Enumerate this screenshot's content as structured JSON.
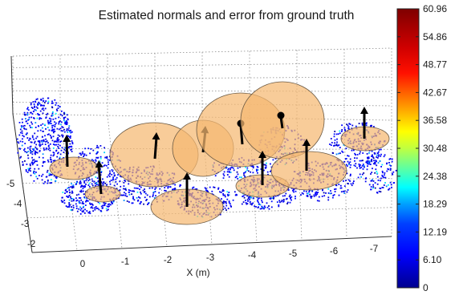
{
  "chart_data": {
    "type": "scatter",
    "title": "Estimated normals and error from ground truth",
    "xlabel": "X (m)",
    "ylabel": "",
    "x_ticks": [
      "0",
      "-1",
      "-2",
      "-3",
      "-4",
      "-5",
      "-6",
      "-7"
    ],
    "y_ticks": [
      "-5",
      "-4",
      "-3",
      "-2"
    ],
    "grid": true,
    "colorbar": {
      "ticks": [
        "0",
        "6.10",
        "12.19",
        "18.29",
        "24.38",
        "30.48",
        "36.58",
        "42.67",
        "48.77",
        "54.86",
        "60.96"
      ],
      "range": [
        0,
        60.96
      ],
      "colormap": "jet"
    },
    "normals_count": 14,
    "colors": {
      "disc_fill": "#f5b971",
      "disc_edge": "#6b5a45",
      "arrow": "#000000",
      "point_dominant": "#0a14c8",
      "grid": "#7a7a7a"
    }
  }
}
